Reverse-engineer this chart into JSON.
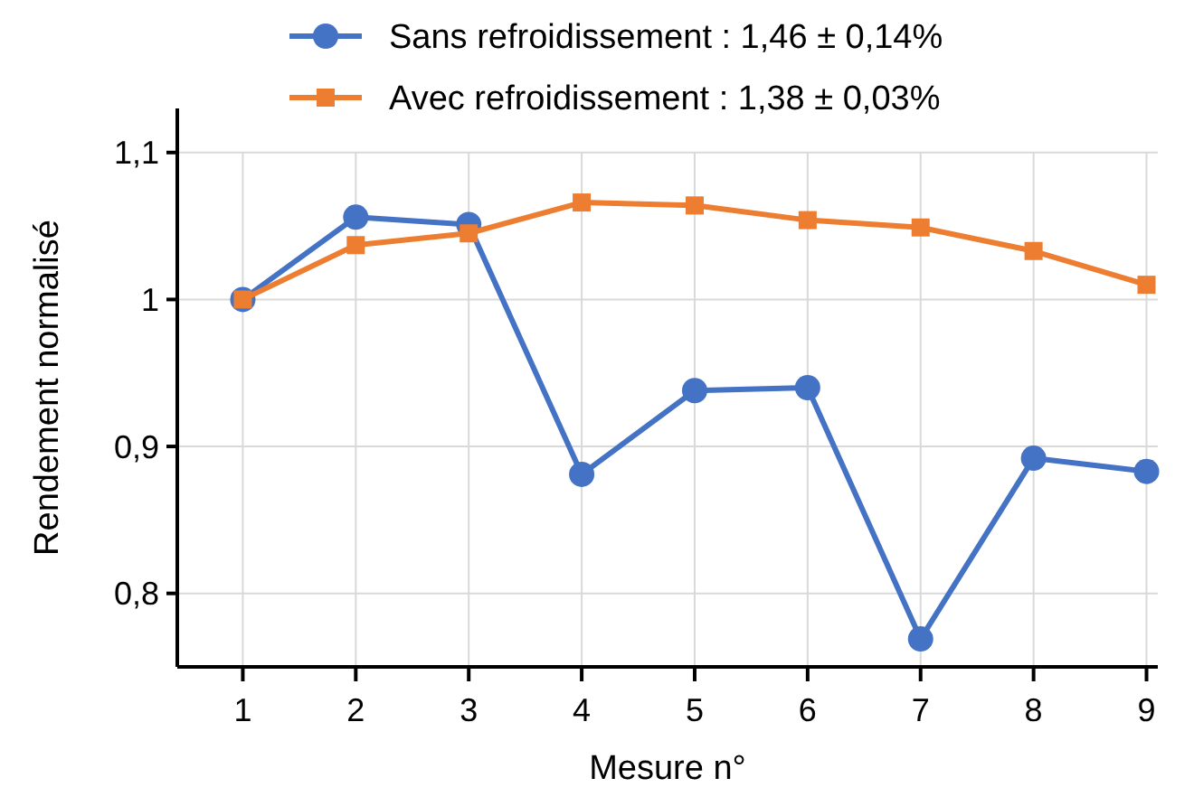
{
  "chart_data": {
    "type": "line",
    "xlabel": "Mesure n°",
    "ylabel": "Rendement normalisé",
    "x": [
      1,
      2,
      3,
      4,
      5,
      6,
      7,
      8,
      9
    ],
    "series": [
      {
        "name": "Sans refroidissement : 1,46 ± 0,14%",
        "color": "#4472c4",
        "marker": "circle",
        "values": [
          1.0,
          1.056,
          1.051,
          0.881,
          0.938,
          0.94,
          0.769,
          0.892,
          0.883
        ]
      },
      {
        "name": "Avec refroidissement : 1,38 ± 0,03%",
        "color": "#ed7d31",
        "marker": "square",
        "values": [
          1.0,
          1.037,
          1.045,
          1.066,
          1.064,
          1.054,
          1.049,
          1.033,
          1.01
        ]
      }
    ],
    "xlim": [
      0.42,
      9.1
    ],
    "xticks": [
      1,
      2,
      3,
      4,
      5,
      6,
      7,
      8,
      9
    ],
    "ylim": [
      0.75,
      1.13
    ],
    "yticks": [
      {
        "value": 0.8,
        "label": "0,8"
      },
      {
        "value": 0.9,
        "label": "0,9"
      },
      {
        "value": 1,
        "label": "1"
      },
      {
        "value": 1.1,
        "label": "1,1"
      }
    ],
    "grid": true,
    "legend": "top",
    "line_style": "solid"
  }
}
